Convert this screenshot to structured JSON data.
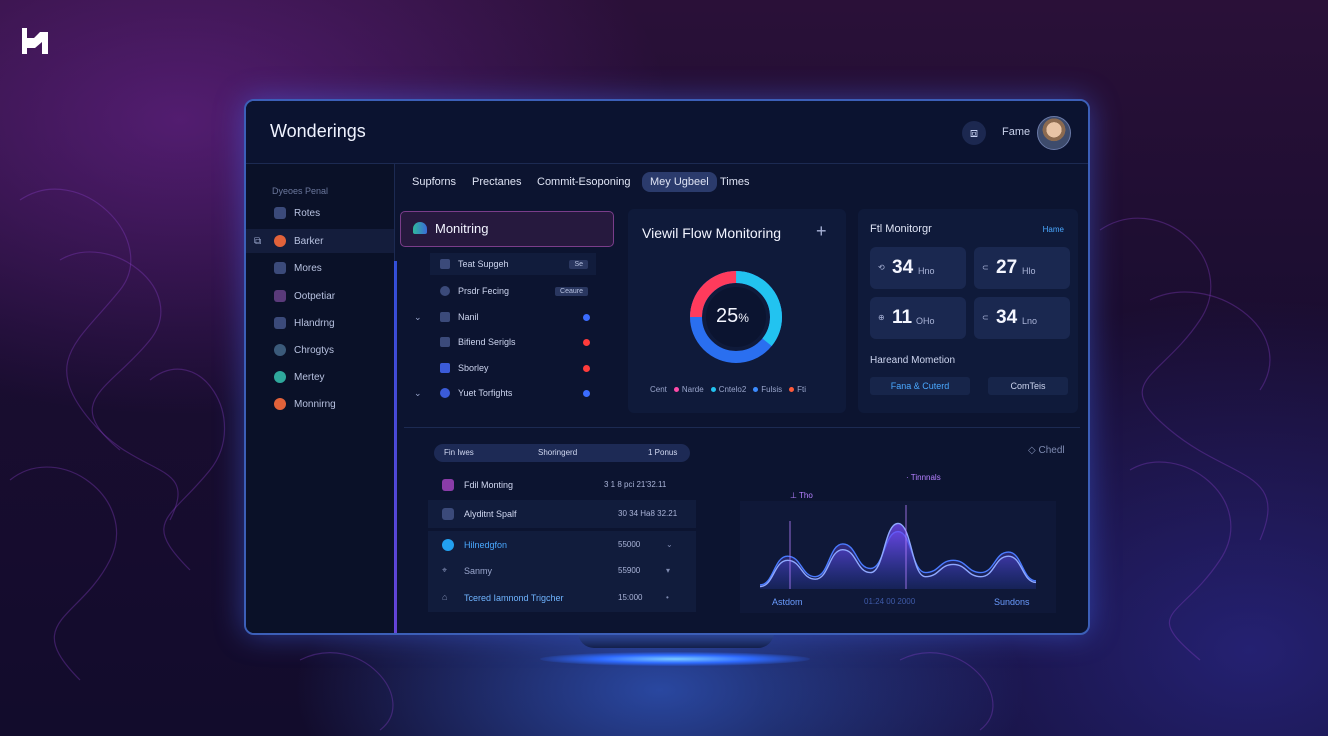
{
  "app": {
    "title": "Wonderings",
    "user_name": "Fame",
    "top_icon": "⧈"
  },
  "tabs": [
    {
      "label": "Supforns",
      "active": false
    },
    {
      "label": "Prectanes",
      "active": false
    },
    {
      "label": "Commit-Esoponing",
      "active": false
    },
    {
      "label": "Mey Ugbeel",
      "active": true
    },
    {
      "label": "Times",
      "active": false
    }
  ],
  "sidebar": {
    "header": "Dyeoes Penal",
    "items": [
      {
        "label": "Rotes",
        "color": "#3b4a7a"
      },
      {
        "label": "Barker",
        "color": "#e2623a",
        "active": true
      },
      {
        "label": "Mores",
        "color": "#3b4a7a"
      },
      {
        "label": "Ootpetiar",
        "color": "#5a3a7a"
      },
      {
        "label": "Hlandrng",
        "color": "#3b4a7a"
      },
      {
        "label": "Chrogtys",
        "color": "#3b5a7a"
      },
      {
        "label": "Mertey",
        "color": "#2fa89c"
      },
      {
        "label": "Monnirng",
        "color": "#e2623a"
      }
    ]
  },
  "monitor_panel": {
    "title": "Monitring",
    "rows": [
      {
        "label": "Teat Supgeh",
        "badge": "Se"
      },
      {
        "label": "Prsdr Fecing",
        "badge": "Ceaure"
      },
      {
        "label": "Nanil",
        "dot": "#3b6cff",
        "chevron": "⌄"
      },
      {
        "label": "Bifiend Serigls",
        "dot": "#ff3b3b"
      },
      {
        "label": "Sborley",
        "dot": "#ff3b3b"
      },
      {
        "label": "Yuet Torfights",
        "dot": "#3b6cff",
        "chevron": "⌄"
      }
    ]
  },
  "donut_panel": {
    "title": "Viewil Flow Monitoring",
    "add_icon": "+",
    "value": "25",
    "unit": "%",
    "legend": [
      {
        "label": "Cent",
        "color": ""
      },
      {
        "label": "Narde",
        "color": "#ff4aa8"
      },
      {
        "label": "Cntelo2",
        "color": "#22c3f0"
      },
      {
        "label": "Fulsis",
        "color": "#3b8bff"
      },
      {
        "label": "Fti",
        "color": "#ff5a3a"
      }
    ]
  },
  "stats_panel": {
    "title": "Ftl Monitorgr",
    "link": "Hame",
    "stats": [
      {
        "pre": "⟲",
        "num": "34",
        "unit": "Hno"
      },
      {
        "pre": "⊂",
        "num": "27",
        "unit": "Hlo"
      },
      {
        "pre": "⊕",
        "num": "11",
        "unit": "OHo"
      },
      {
        "pre": "⊂",
        "num": "34",
        "unit": "Lno"
      }
    ],
    "subtitle": "Hareand Mometion",
    "buttons": [
      {
        "label": "Fana & Cuterd"
      },
      {
        "label": "ComTeis"
      }
    ]
  },
  "table": {
    "header": [
      "Fin Iwes",
      "Shoringerd",
      "1 Ponus"
    ],
    "rows": [
      {
        "label": "Fdil Monting",
        "value": "3 1 8 pci 21'32.11",
        "color": "#8a3ca8"
      },
      {
        "label": "Alyditnt Spalf",
        "value": "30 34 Ha8 32.21",
        "color": "#3b4a7a"
      },
      {
        "label": "Hilnedgfon",
        "value": "55000",
        "arrow": "⌄",
        "color": "#22a0f0"
      },
      {
        "label": "Sanmy",
        "value": "55900",
        "arrow": "▾",
        "color": "#3b4a7a"
      },
      {
        "label": "Tcered Iamnond Trigcher",
        "value": "15:000",
        "arrow": "•",
        "color": "#3b4a7a"
      }
    ]
  },
  "chart_data": {
    "type": "area",
    "label_top": "Chedl",
    "annotations": [
      "Tinnnals",
      "Tho"
    ],
    "x_labels": [
      "Astdom",
      "01:24 00 2000",
      "Sundons"
    ],
    "series": [
      {
        "values": [
          5,
          40,
          15,
          55,
          25,
          70,
          20,
          35,
          20,
          45,
          10
        ]
      },
      {
        "values": [
          3,
          35,
          12,
          48,
          20,
          80,
          15,
          30,
          15,
          40,
          8
        ]
      }
    ],
    "ylim": [
      0,
      100
    ]
  }
}
